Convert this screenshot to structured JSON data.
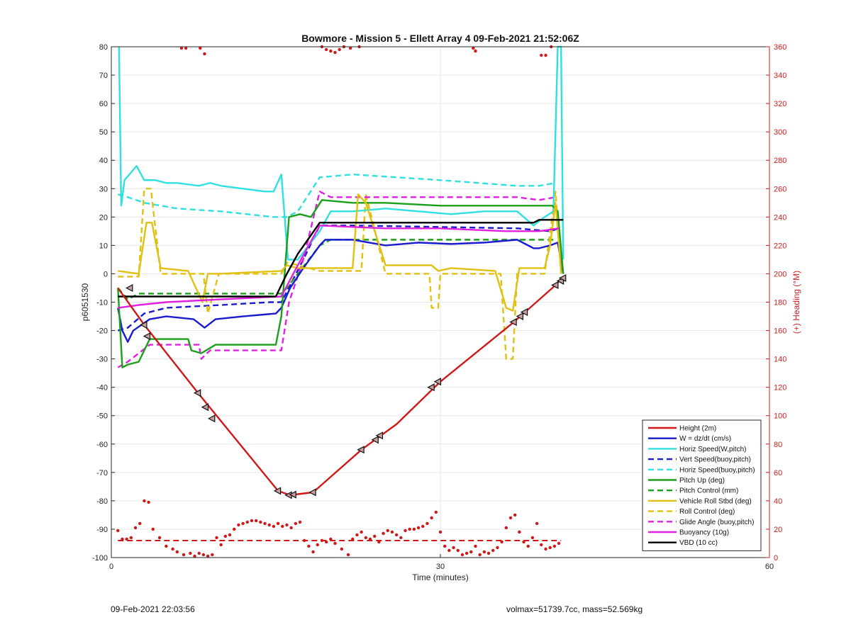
{
  "chart_data": {
    "type": "line",
    "title": "Bowmore - Mission 5 - Ellett Array 4 09-Feb-2021 21:52:06Z",
    "xlabel": "Time (minutes)",
    "ylabel": "p6051530",
    "ylabel_right": "(+) Heading (°M)",
    "xlim": [
      0,
      60
    ],
    "ylim": [
      -100,
      80
    ],
    "ylim_right": [
      0,
      360
    ],
    "x_ticks": [
      "0",
      "30",
      "60"
    ],
    "y_ticks": [
      "-100",
      "-90",
      "-80",
      "-70",
      "-60",
      "-50",
      "-40",
      "-30",
      "-20",
      "-10",
      "0",
      "10",
      "20",
      "30",
      "40",
      "50",
      "60",
      "70",
      "80"
    ],
    "y_ticks_right": [
      "0",
      "20",
      "40",
      "60",
      "80",
      "100",
      "120",
      "140",
      "160",
      "180",
      "200",
      "220",
      "240",
      "260",
      "280",
      "300",
      "320",
      "340",
      "360"
    ],
    "grid": true,
    "legend_placement": "bottom-right",
    "series": [
      {
        "name": "Height (2m)",
        "color": "#d01818",
        "style": "solid",
        "x": [
          0.6,
          3.0,
          7.9,
          15.2,
          16.3,
          18.4,
          22.8,
          26.0,
          30.0,
          36.7,
          40.5,
          41.2
        ],
        "y": [
          -5,
          -18,
          -42,
          -76.5,
          -78,
          -77,
          -62,
          -53,
          -38,
          -17,
          -4,
          -1
        ]
      },
      {
        "name": "W = dz/dt (cm/s)",
        "color": "#1a1ad0",
        "style": "solid",
        "x": [
          0.6,
          1.0,
          1.5,
          2.0,
          3.5,
          5.0,
          7.5,
          8.5,
          9.5,
          12,
          15,
          15.5,
          16.3,
          17.5,
          19,
          19.5,
          22,
          25,
          28,
          31,
          34,
          35.5,
          37,
          38.5,
          39,
          40,
          40.7,
          41.2
        ],
        "y": [
          -12,
          -20,
          -24,
          -20,
          -16,
          -15,
          -16,
          -19,
          -16,
          -15,
          -14,
          -12,
          -5,
          2,
          10,
          12,
          12,
          10,
          11,
          10.5,
          11,
          11.5,
          12,
          9,
          9,
          10,
          11,
          0
        ]
      },
      {
        "name": "Horiz Speed(W,pitch)",
        "color": "#30e0e0",
        "style": "solid",
        "x": [
          0.7,
          0.9,
          1.2,
          2.3,
          3,
          4,
          5,
          6,
          8,
          9,
          10,
          12,
          14,
          14.8,
          15.5,
          16.1,
          17,
          19,
          20,
          22,
          25,
          28,
          31,
          34,
          37,
          38.5,
          39.5,
          40.3,
          40.7,
          41.0,
          41.2
        ],
        "y": [
          80,
          24,
          33,
          38,
          33,
          33,
          32,
          32,
          31,
          32,
          31,
          30,
          29,
          29,
          35,
          5,
          5,
          15,
          22,
          22,
          23,
          22,
          21,
          22,
          22,
          17,
          20,
          22,
          80,
          80,
          5
        ]
      },
      {
        "name": "Vert Speed(buoy,pitch)",
        "color": "#1a1ad0",
        "style": "dashed",
        "x": [
          0.6,
          1.5,
          3,
          5,
          10,
          14.5,
          15.5,
          17.5,
          19,
          22,
          30,
          37,
          40,
          40.8
        ],
        "y": [
          -20,
          -19,
          -14,
          -12,
          -11,
          -10,
          -10,
          5,
          17,
          17,
          16.5,
          16,
          15,
          16
        ]
      },
      {
        "name": "Horiz Speed(buoy,pitch)",
        "color": "#30e0e0",
        "style": "dashed",
        "x": [
          0.6,
          1.5,
          3,
          6,
          10,
          14.8,
          16,
          17,
          19,
          22,
          30,
          37,
          39,
          40.5
        ],
        "y": [
          28,
          27,
          25,
          23,
          22,
          20,
          20,
          22,
          34,
          35,
          33,
          31,
          31,
          32
        ]
      },
      {
        "name": "Pitch Up (deg)",
        "color": "#1aa01a",
        "style": "solid",
        "x": [
          0.6,
          1.0,
          1.5,
          2.5,
          3.5,
          7,
          7.3,
          8.2,
          9.5,
          15,
          15.5,
          16.2,
          17.2,
          18.2,
          19.2,
          22,
          25,
          30,
          35,
          39,
          40.2,
          40.7,
          41.2
        ],
        "y": [
          -5,
          -33,
          -32,
          -31,
          -23,
          -23,
          -27,
          -28,
          -25,
          -25,
          -15,
          20,
          21,
          20,
          26,
          25,
          25,
          24,
          24,
          24,
          24,
          22,
          0
        ]
      },
      {
        "name": "Pitch Control (mm)",
        "color": "#1aa01a",
        "style": "dashed",
        "x": [
          0.6,
          1.5,
          2.5,
          3.5,
          15.5,
          16,
          19,
          20,
          25,
          30,
          37,
          40.5
        ],
        "y": [
          -5,
          -9,
          -7,
          -7,
          -7,
          -5,
          10,
          12,
          12,
          12,
          12,
          12
        ]
      },
      {
        "name": "Vehicle Roll Stbd (deg)",
        "color": "#e0c010",
        "style": "solid",
        "x": [
          0.6,
          2.5,
          3.2,
          3.7,
          4.5,
          7,
          8.3,
          8.8,
          9.8,
          15.5,
          16,
          17,
          19,
          22,
          22.5,
          23.2,
          25,
          28,
          29.2,
          29.8,
          31,
          35,
          36,
          36.6,
          37.2,
          39.5,
          40,
          40.5,
          41
        ],
        "y": [
          1,
          0,
          18,
          18,
          2,
          1,
          -10,
          0,
          0,
          1,
          3,
          2,
          2,
          2,
          28,
          25,
          3,
          3,
          3,
          1,
          2,
          1,
          -12,
          -13,
          2,
          2,
          10,
          25,
          1
        ]
      },
      {
        "name": "Roll Control (deg)",
        "color": "#e0c010",
        "style": "dashed",
        "x": [
          0.6,
          2.5,
          3.0,
          3.6,
          4.5,
          7,
          8.4,
          8.8,
          9.8,
          15.5,
          16,
          19,
          22.8,
          23.2,
          25,
          29,
          29.2,
          29.8,
          30,
          35.5,
          36,
          36.6,
          37,
          39.5,
          40.5,
          41
        ],
        "y": [
          -1,
          -1,
          30,
          30,
          0,
          0,
          0,
          -14,
          0,
          0,
          4,
          1,
          1,
          28,
          0,
          0,
          -12,
          -12,
          0,
          0,
          -30,
          -30,
          0,
          0,
          29,
          0
        ]
      },
      {
        "name": "Glide Angle (buoy,pitch)",
        "color": "#e020e0",
        "style": "dashed",
        "x": [
          0.6,
          1.5,
          2.5,
          3.5,
          8,
          8.2,
          9,
          15.5,
          16.2,
          17.5,
          19,
          20,
          25,
          30,
          37,
          39,
          40.5
        ],
        "y": [
          -33,
          -31,
          -28,
          -25,
          -25,
          -30,
          -27,
          -27,
          -10,
          5,
          29,
          27,
          27,
          27,
          27,
          26,
          27
        ]
      },
      {
        "name": "Buoyancy (10g)",
        "color": "#e020e0",
        "style": "solid",
        "x": [
          0.6,
          2.5,
          5,
          10,
          15.5,
          17,
          19,
          25,
          30,
          36,
          39,
          40.8
        ],
        "y": [
          -12,
          -11,
          -10,
          -9,
          -8,
          3,
          17,
          16,
          16,
          15,
          15,
          16
        ]
      },
      {
        "name": "VBD (10 cc)",
        "color": "#000000",
        "style": "solid",
        "x": [
          0.6,
          15,
          16,
          17,
          19,
          22,
          30,
          38.5,
          39,
          41.2
        ],
        "y": [
          -8,
          -8,
          0,
          7,
          18,
          18,
          18,
          18,
          19,
          19
        ]
      },
      {
        "name": "",
        "color": "#d01818",
        "style": "dashed",
        "x": [
          0.6,
          41
        ],
        "y": [
          -94,
          -94
        ]
      }
    ],
    "height_markers": {
      "x": [
        1.7,
        3.0,
        3.3,
        7.9,
        8.6,
        9.2,
        15.2,
        16.2,
        16.6,
        18.4,
        22.8,
        24.1,
        24.5,
        29.2,
        29.8,
        36.7,
        37.3,
        37.7,
        40.5,
        41.0,
        41.2
      ],
      "y": [
        -5,
        -18,
        -22,
        -42,
        -47,
        -51,
        -76.5,
        -78,
        -77.8,
        -77,
        -62,
        -58.5,
        -57,
        -40,
        -38,
        -17,
        -15,
        -13.5,
        -4,
        -2.5,
        -1.5
      ]
    },
    "heading_points": {
      "name": "(+) Heading (°M)",
      "color": "#d01818",
      "x": [
        0.6,
        1.0,
        1.4,
        1.8,
        2.2,
        2.6,
        3.0,
        3.4,
        3.8,
        4.4,
        5.0,
        5.6,
        6.0,
        6.6,
        7.2,
        7.6,
        8.0,
        8.4,
        8.8,
        9.2,
        9.6,
        10.0,
        10.4,
        10.8,
        11.2,
        11.6,
        12.0,
        12.4,
        12.8,
        13.2,
        13.6,
        14.0,
        14.4,
        14.8,
        15.2,
        15.6,
        16.0,
        16.4,
        16.8,
        17.2,
        17.6,
        18.0,
        18.4,
        18.8,
        19.2,
        19.6,
        20.0,
        20.4,
        21.0,
        21.6,
        22.0,
        22.4,
        22.8,
        23.2,
        23.6,
        24.0,
        24.4,
        24.8,
        25.2,
        25.6,
        26.0,
        26.4,
        26.8,
        27.2,
        27.6,
        28.0,
        28.4,
        28.8,
        29.2,
        29.6,
        30.0,
        30.4,
        30.8,
        31.2,
        31.6,
        32.0,
        32.4,
        32.8,
        33.2,
        33.6,
        34.0,
        34.4,
        34.8,
        35.2,
        35.6,
        36.0,
        36.4,
        36.8,
        37.2,
        37.6,
        38.0,
        38.4,
        38.8,
        39.2,
        39.6,
        40.0,
        40.4,
        40.8,
        6.4,
        6.8,
        8.1,
        8.5,
        19.2,
        19.6,
        20.0,
        20.4,
        20.8,
        21.2,
        21.8,
        22.6,
        33.0,
        33.2,
        39.2,
        39.6,
        40.1
      ],
      "y": [
        19,
        13,
        13,
        14,
        21,
        24,
        40,
        39,
        20,
        14,
        8,
        6,
        4,
        2,
        3,
        1,
        3,
        2,
        1,
        2,
        14,
        9,
        15,
        16,
        20,
        23,
        24,
        25,
        26,
        26,
        25,
        24,
        23,
        22,
        24,
        22,
        23,
        21,
        24,
        25,
        12,
        8,
        4,
        9,
        12,
        11,
        13,
        10,
        6,
        2,
        13,
        16,
        18,
        14,
        13,
        15,
        11,
        17,
        19,
        18,
        16,
        14,
        19,
        20,
        20,
        21,
        22,
        24,
        28,
        32,
        18,
        8,
        5,
        7,
        5,
        2,
        3,
        4,
        8,
        2,
        4,
        3,
        5,
        7,
        11,
        21,
        28,
        30,
        18,
        11,
        8,
        14,
        24,
        9,
        6,
        7,
        8,
        10,
        359,
        359,
        359,
        355,
        360,
        358,
        357,
        356,
        358,
        360,
        359,
        360,
        359,
        357,
        354,
        354,
        360
      ]
    }
  },
  "footer": {
    "date": "09-Feb-2021 22:03:56",
    "info": "volmax=51739.7cc, mass=52.569kg"
  }
}
